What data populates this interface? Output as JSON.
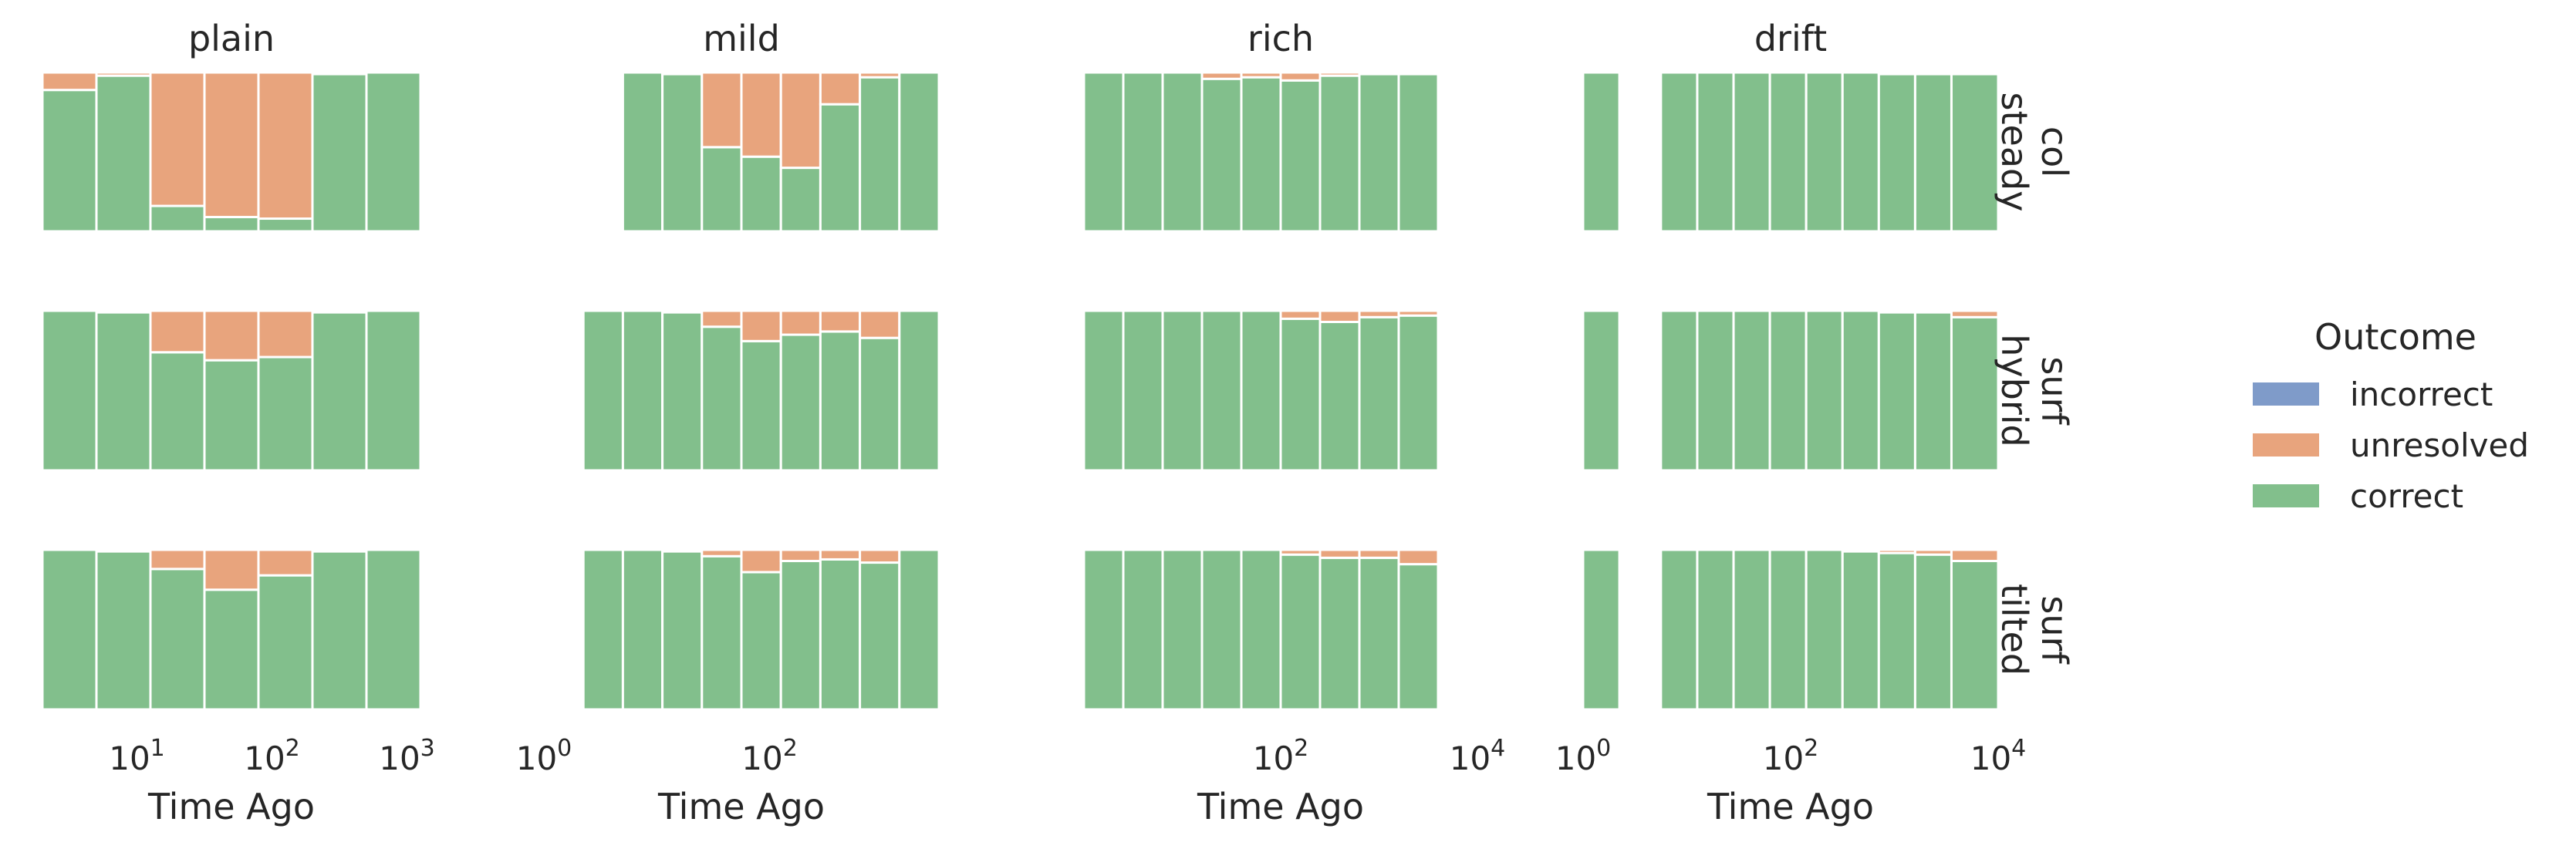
{
  "chart_data": {
    "type": "bar",
    "stacked": true,
    "normalized": true,
    "x_scale": "log",
    "xlabel": "Time Ago",
    "columns": [
      "plain",
      "mild",
      "rich",
      "drift"
    ],
    "rows": [
      [
        "col",
        "steady"
      ],
      [
        "surf",
        "hybrid"
      ],
      [
        "surf",
        "tilted"
      ]
    ],
    "legend": {
      "title": "Outcome",
      "placement": "right",
      "entries": [
        {
          "name": "incorrect",
          "color": "#7f9bc9"
        },
        {
          "name": "unresolved",
          "color": "#e8a47d"
        },
        {
          "name": "correct",
          "color": "#82bf8c"
        }
      ]
    },
    "x_ticks": {
      "plain": [
        {
          "exp": 1,
          "base": "10",
          "power": "1"
        },
        {
          "exp": 2,
          "base": "10",
          "power": "2"
        },
        {
          "exp": 3,
          "base": "10",
          "power": "3"
        }
      ],
      "mild": [
        {
          "exp": 0,
          "base": "10",
          "power": "0"
        },
        {
          "exp": 2,
          "base": "10",
          "power": "2"
        }
      ],
      "rich": [
        {
          "exp": 2,
          "base": "10",
          "power": "2"
        },
        {
          "exp": 4,
          "base": "10",
          "power": "4"
        }
      ],
      "drift": [
        {
          "exp": 0,
          "base": "10",
          "power": "0"
        },
        {
          "exp": 2,
          "base": "10",
          "power": "2"
        },
        {
          "exp": 4,
          "base": "10",
          "power": "4"
        }
      ]
    },
    "x_ranges_log10": {
      "plain": [
        0.3,
        3.1
      ],
      "mild": [
        0.0,
        3.5
      ],
      "rich": [
        0.0,
        4.0
      ],
      "drift": [
        0.0,
        4.0
      ]
    },
    "bins_log10": {
      "plain": [
        [
          0.3,
          0.7
        ],
        [
          0.7,
          1.1
        ],
        [
          1.1,
          1.5
        ],
        [
          1.5,
          1.9
        ],
        [
          1.9,
          2.3
        ],
        [
          2.3,
          2.7
        ],
        [
          2.7,
          3.1
        ]
      ],
      "mild": [
        [
          0.35,
          0.7
        ],
        [
          0.7,
          1.05
        ],
        [
          1.05,
          1.4
        ],
        [
          1.4,
          1.75
        ],
        [
          1.75,
          2.1
        ],
        [
          2.1,
          2.45
        ],
        [
          2.45,
          2.8
        ],
        [
          2.8,
          3.15
        ],
        [
          3.15,
          3.5
        ]
      ],
      "rich": [
        [
          0.0,
          0.4
        ],
        [
          0.4,
          0.8
        ],
        [
          0.8,
          1.2
        ],
        [
          1.2,
          1.6
        ],
        [
          1.6,
          2.0
        ],
        [
          2.0,
          2.4
        ],
        [
          2.4,
          2.8
        ],
        [
          2.8,
          3.2
        ],
        [
          3.2,
          3.6
        ]
      ],
      "drift": [
        [
          0.0,
          0.35
        ],
        [
          0.75,
          1.1
        ],
        [
          1.1,
          1.45
        ],
        [
          1.45,
          1.8
        ],
        [
          1.8,
          2.15
        ],
        [
          2.15,
          2.5
        ],
        [
          2.5,
          2.85
        ],
        [
          2.85,
          3.2
        ],
        [
          3.2,
          3.55
        ],
        [
          3.55,
          4.0
        ]
      ]
    },
    "panels": [
      {
        "row": 0,
        "col": "plain",
        "correct": [
          0.89,
          0.98,
          0.16,
          0.09,
          0.08,
          0.99,
          1.0
        ],
        "unresolved": [
          0.11,
          0.02,
          0.84,
          0.91,
          0.92,
          0.01,
          0.0
        ],
        "incorrect": [
          0,
          0,
          0,
          0,
          0,
          0,
          0
        ]
      },
      {
        "row": 0,
        "col": "mild",
        "correct": [
          null,
          1.0,
          0.99,
          0.53,
          0.47,
          0.4,
          0.8,
          0.97,
          1.0
        ],
        "unresolved": [
          null,
          0.0,
          0.01,
          0.47,
          0.53,
          0.6,
          0.2,
          0.03,
          0.0
        ],
        "incorrect": [
          null,
          0,
          0,
          0,
          0,
          0,
          0,
          0,
          0
        ]
      },
      {
        "row": 0,
        "col": "rich",
        "correct": [
          1.0,
          1.0,
          1.0,
          0.96,
          0.97,
          0.95,
          0.98,
          0.99,
          0.99
        ],
        "unresolved": [
          0.0,
          0.0,
          0.0,
          0.04,
          0.03,
          0.05,
          0.02,
          0.01,
          0.01
        ],
        "incorrect": [
          0,
          0,
          0,
          0,
          0,
          0,
          0,
          0,
          0
        ]
      },
      {
        "row": 0,
        "col": "drift",
        "correct": [
          1.0,
          1.0,
          1.0,
          1.0,
          1.0,
          1.0,
          1.0,
          0.99,
          0.99,
          0.99
        ],
        "unresolved": [
          0.0,
          0.0,
          0.0,
          0.0,
          0.0,
          0.0,
          0.0,
          0.01,
          0.01,
          0.01
        ],
        "incorrect": [
          0,
          0,
          0,
          0,
          0,
          0,
          0,
          0,
          0,
          0
        ]
      },
      {
        "row": 1,
        "col": "plain",
        "correct": [
          1.0,
          0.99,
          0.74,
          0.69,
          0.71,
          0.99,
          1.0
        ],
        "unresolved": [
          0.0,
          0.01,
          0.26,
          0.31,
          0.29,
          0.01,
          0.0
        ],
        "incorrect": [
          0,
          0,
          0,
          0,
          0,
          0,
          0
        ]
      },
      {
        "row": 1,
        "col": "mild",
        "correct": [
          1.0,
          1.0,
          0.99,
          0.9,
          0.81,
          0.85,
          0.87,
          0.83,
          1.0
        ],
        "unresolved": [
          0.0,
          0.0,
          0.01,
          0.1,
          0.19,
          0.15,
          0.13,
          0.17,
          0.0
        ],
        "incorrect": [
          0,
          0,
          0,
          0,
          0,
          0,
          0,
          0,
          0
        ]
      },
      {
        "row": 1,
        "col": "rich",
        "correct": [
          1.0,
          1.0,
          1.0,
          1.0,
          1.0,
          0.95,
          0.93,
          0.96,
          0.97
        ],
        "unresolved": [
          0.0,
          0.0,
          0.0,
          0.0,
          0.0,
          0.05,
          0.07,
          0.04,
          0.03
        ],
        "incorrect": [
          0,
          0,
          0,
          0,
          0,
          0,
          0,
          0,
          0
        ]
      },
      {
        "row": 1,
        "col": "drift",
        "correct": [
          1.0,
          1.0,
          1.0,
          1.0,
          1.0,
          1.0,
          1.0,
          0.99,
          0.99,
          0.96
        ],
        "unresolved": [
          0.0,
          0.0,
          0.0,
          0.0,
          0.0,
          0.0,
          0.0,
          0.01,
          0.01,
          0.04
        ],
        "incorrect": [
          0,
          0,
          0,
          0,
          0,
          0,
          0,
          0,
          0,
          0
        ]
      },
      {
        "row": 2,
        "col": "plain",
        "correct": [
          1.0,
          0.99,
          0.88,
          0.75,
          0.84,
          0.99,
          1.0
        ],
        "unresolved": [
          0.0,
          0.01,
          0.12,
          0.25,
          0.16,
          0.01,
          0.0
        ],
        "incorrect": [
          0,
          0,
          0,
          0,
          0,
          0,
          0
        ]
      },
      {
        "row": 2,
        "col": "mild",
        "correct": [
          1.0,
          1.0,
          0.99,
          0.96,
          0.86,
          0.93,
          0.94,
          0.92,
          1.0
        ],
        "unresolved": [
          0.0,
          0.0,
          0.01,
          0.04,
          0.14,
          0.07,
          0.06,
          0.08,
          0.0
        ],
        "incorrect": [
          0,
          0,
          0,
          0,
          0,
          0,
          0,
          0,
          0
        ]
      },
      {
        "row": 2,
        "col": "rich",
        "correct": [
          1.0,
          1.0,
          1.0,
          1.0,
          1.0,
          0.97,
          0.95,
          0.95,
          0.91
        ],
        "unresolved": [
          0.0,
          0.0,
          0.0,
          0.0,
          0.0,
          0.03,
          0.05,
          0.05,
          0.09
        ],
        "incorrect": [
          0,
          0,
          0,
          0,
          0,
          0,
          0,
          0,
          0
        ]
      },
      {
        "row": 2,
        "col": "drift",
        "correct": [
          1.0,
          1.0,
          1.0,
          1.0,
          1.0,
          1.0,
          0.99,
          0.98,
          0.97,
          0.93
        ],
        "unresolved": [
          0.0,
          0.0,
          0.0,
          0.0,
          0.0,
          0.0,
          0.01,
          0.02,
          0.03,
          0.07
        ],
        "incorrect": [
          0,
          0,
          0,
          0,
          0,
          0,
          0,
          0,
          0,
          0
        ]
      }
    ]
  }
}
